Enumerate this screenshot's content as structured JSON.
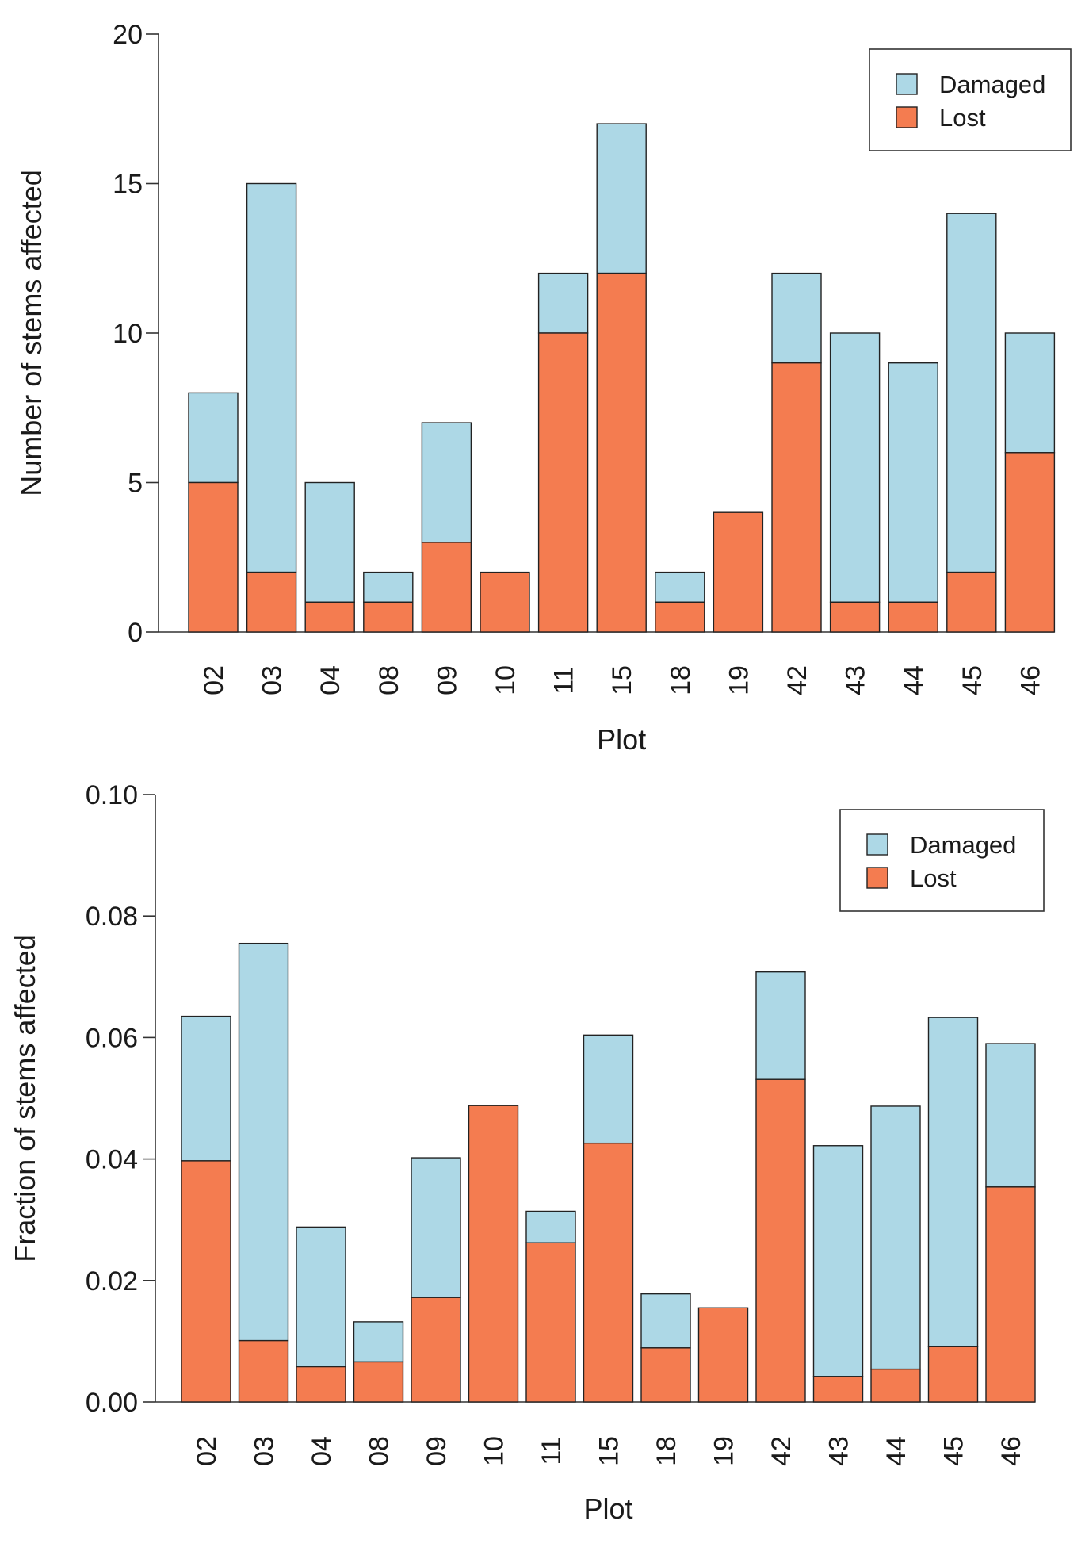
{
  "colors": {
    "damaged": "#add8e6",
    "lost": "#f47c50"
  },
  "chart_data": [
    {
      "type": "bar",
      "stacked": true,
      "title": "",
      "xlabel": "Plot",
      "ylabel": "Number of stems affected",
      "ylim": [
        0,
        20
      ],
      "yticks": [
        0,
        5,
        10,
        15,
        20
      ],
      "ytick_labels": [
        "0",
        "5",
        "10",
        "15",
        "20"
      ],
      "categories": [
        "02",
        "03",
        "04",
        "08",
        "09",
        "10",
        "11",
        "15",
        "18",
        "19",
        "42",
        "43",
        "44",
        "45",
        "46"
      ],
      "series": [
        {
          "name": "Lost",
          "values": [
            5,
            2,
            1,
            1,
            3,
            2,
            10,
            12,
            1,
            4,
            9,
            1,
            1,
            2,
            6
          ]
        },
        {
          "name": "Damaged",
          "values": [
            3,
            13,
            4,
            1,
            4,
            0,
            2,
            5,
            1,
            0,
            3,
            9,
            8,
            12,
            4
          ]
        }
      ],
      "legend": {
        "position": "top-right",
        "entries": [
          "Damaged",
          "Lost"
        ]
      }
    },
    {
      "type": "bar",
      "stacked": true,
      "title": "",
      "xlabel": "Plot",
      "ylabel": "Fraction of stems affected",
      "ylim": [
        0,
        0.1
      ],
      "yticks": [
        0,
        0.02,
        0.04,
        0.06,
        0.08,
        0.1
      ],
      "ytick_labels": [
        "0.00",
        "0.02",
        "0.04",
        "0.06",
        "0.08",
        "0.10"
      ],
      "categories": [
        "02",
        "03",
        "04",
        "08",
        "09",
        "10",
        "11",
        "15",
        "18",
        "19",
        "42",
        "43",
        "44",
        "45",
        "46"
      ],
      "series": [
        {
          "name": "Lost",
          "values": [
            0.0397,
            0.0101,
            0.0058,
            0.0066,
            0.0172,
            0.0488,
            0.0262,
            0.0426,
            0.0089,
            0.0155,
            0.0531,
            0.0042,
            0.0054,
            0.0091,
            0.0354
          ]
        },
        {
          "name": "Damaged",
          "values": [
            0.0238,
            0.0654,
            0.023,
            0.0066,
            0.023,
            0.0,
            0.0052,
            0.0178,
            0.0089,
            0.0,
            0.0177,
            0.038,
            0.0433,
            0.0542,
            0.0236
          ]
        }
      ],
      "legend": {
        "position": "top-right",
        "entries": [
          "Damaged",
          "Lost"
        ]
      }
    }
  ]
}
